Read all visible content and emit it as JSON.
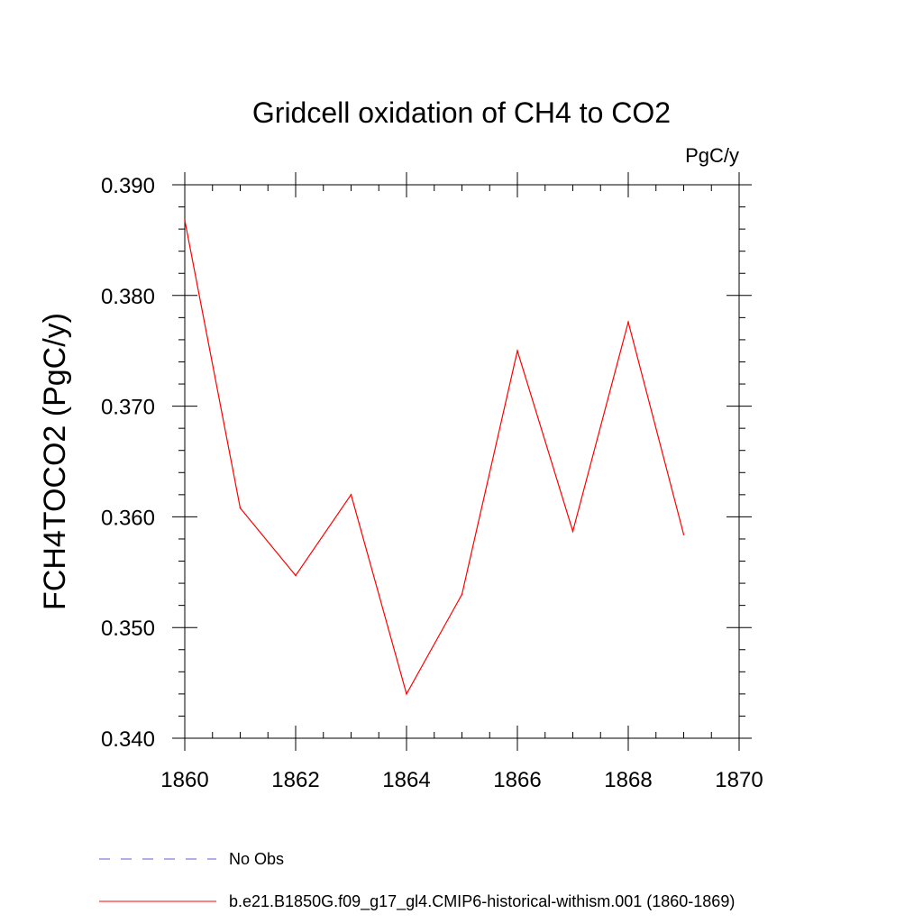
{
  "chart_data": {
    "type": "line",
    "title": "Gridcell oxidation of CH4 to CO2",
    "units": "PgC/y",
    "ylabel": "FCH4TOCO2  (PgC/y)",
    "xlabel": "",
    "xlim": [
      1860,
      1870
    ],
    "ylim": [
      0.34,
      0.39
    ],
    "xticks": [
      1860,
      1862,
      1864,
      1866,
      1868,
      1870
    ],
    "xtick_labels": [
      "1860",
      "1862",
      "1864",
      "1866",
      "1868",
      "1870"
    ],
    "yticks": [
      0.34,
      0.35,
      0.36,
      0.37,
      0.38,
      0.39
    ],
    "ytick_labels": [
      "0.340",
      "0.350",
      "0.360",
      "0.370",
      "0.380",
      "0.390"
    ],
    "grid": false,
    "legend_position": "bottom-left",
    "series": [
      {
        "name": "b.e21.B1850G.f09_g17_gl4.CMIP6-historical-withism.001 (1860-1869)",
        "color": "#ff0000",
        "style": "solid",
        "x": [
          1860,
          1861,
          1862,
          1863,
          1864,
          1865,
          1866,
          1867,
          1868,
          1869
        ],
        "y": [
          0.3868,
          0.3608,
          0.3547,
          0.362,
          0.344,
          0.353,
          0.375,
          0.3587,
          0.3776,
          0.3584
        ]
      }
    ],
    "legend": [
      {
        "label": "No Obs",
        "color": "#6a5acd",
        "style": "dashed"
      },
      {
        "label": "b.e21.B1850G.f09_g17_gl4.CMIP6-historical-withism.001 (1860-1869)",
        "color": "#ff0000",
        "style": "solid"
      }
    ]
  }
}
